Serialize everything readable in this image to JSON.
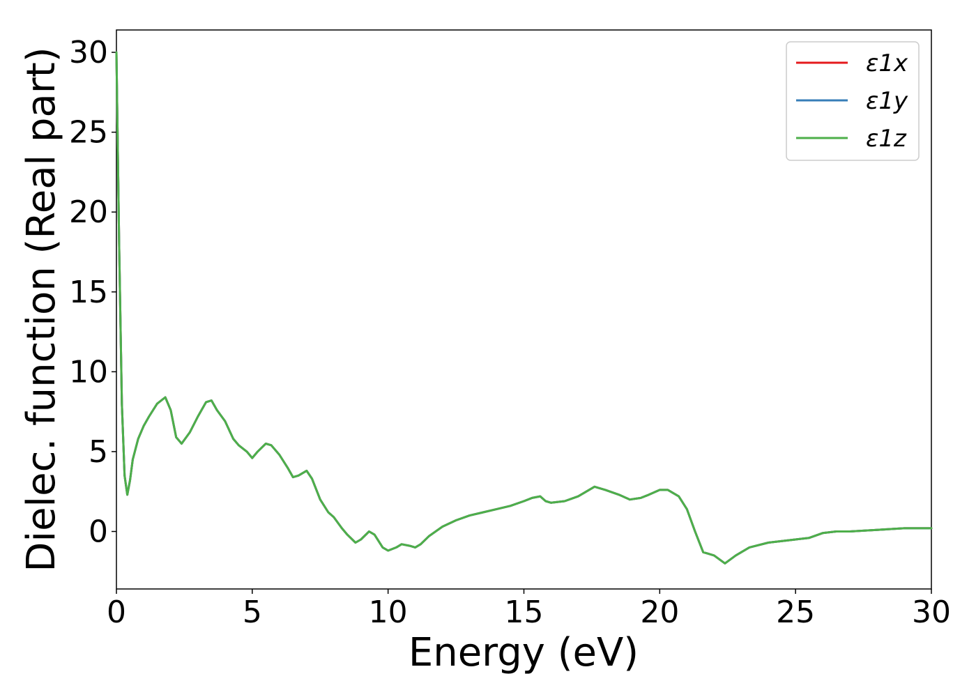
{
  "chart_data": {
    "type": "line",
    "xlabel": "Energy (eV)",
    "ylabel": "Dielec. function (Real part)",
    "xlim": [
      0,
      30
    ],
    "ylim": [
      -3.6,
      31.4
    ],
    "xticks": [
      0,
      5,
      10,
      15,
      20,
      25,
      30
    ],
    "yticks": [
      0,
      5,
      10,
      15,
      20,
      25,
      30
    ],
    "grid": false,
    "legend_position": "top-right",
    "series": [
      {
        "name": "ε1x",
        "color": "#e41a1c"
      },
      {
        "name": "ε1y",
        "color": "#377eb8"
      },
      {
        "name": "ε1z",
        "color": "#4daf4a"
      }
    ],
    "x": [
      0.0,
      0.1,
      0.2,
      0.3,
      0.4,
      0.5,
      0.6,
      0.8,
      1.0,
      1.2,
      1.5,
      1.8,
      2.0,
      2.2,
      2.4,
      2.7,
      3.0,
      3.3,
      3.5,
      3.7,
      4.0,
      4.3,
      4.5,
      4.8,
      5.0,
      5.2,
      5.5,
      5.7,
      6.0,
      6.3,
      6.5,
      6.7,
      7.0,
      7.2,
      7.5,
      7.8,
      8.0,
      8.3,
      8.5,
      8.8,
      9.0,
      9.3,
      9.5,
      9.8,
      10.0,
      10.3,
      10.5,
      10.8,
      11.0,
      11.2,
      11.5,
      12.0,
      12.5,
      13.0,
      13.5,
      14.0,
      14.5,
      15.0,
      15.3,
      15.6,
      15.8,
      16.0,
      16.5,
      17.0,
      17.3,
      17.6,
      18.0,
      18.5,
      18.9,
      19.3,
      19.6,
      20.0,
      20.3,
      20.7,
      21.0,
      21.3,
      21.6,
      22.0,
      22.4,
      22.8,
      23.3,
      24.0,
      24.5,
      25.0,
      25.5,
      26.0,
      26.5,
      27.0,
      28.0,
      29.0,
      30.0
    ],
    "y_common": [
      30.0,
      18.0,
      8.0,
      3.5,
      2.3,
      3.2,
      4.5,
      5.8,
      6.6,
      7.2,
      8.0,
      8.4,
      7.6,
      5.9,
      5.5,
      6.2,
      7.2,
      8.1,
      8.2,
      7.6,
      6.9,
      5.8,
      5.4,
      5.0,
      4.6,
      5.0,
      5.5,
      5.4,
      4.8,
      4.0,
      3.4,
      3.5,
      3.8,
      3.3,
      2.0,
      1.2,
      0.9,
      0.2,
      -0.2,
      -0.7,
      -0.5,
      0.0,
      -0.2,
      -1.0,
      -1.2,
      -1.0,
      -0.8,
      -0.9,
      -1.0,
      -0.8,
      -0.3,
      0.3,
      0.7,
      1.0,
      1.2,
      1.4,
      1.6,
      1.9,
      2.1,
      2.2,
      1.9,
      1.8,
      1.9,
      2.2,
      2.5,
      2.8,
      2.6,
      2.3,
      2.0,
      2.1,
      2.3,
      2.6,
      2.6,
      2.2,
      1.4,
      0.0,
      -1.3,
      -1.5,
      -2.0,
      -1.5,
      -1.0,
      -0.7,
      -0.6,
      -0.5,
      -0.4,
      -0.1,
      0.0,
      0.0,
      0.1,
      0.2,
      0.2
    ]
  }
}
